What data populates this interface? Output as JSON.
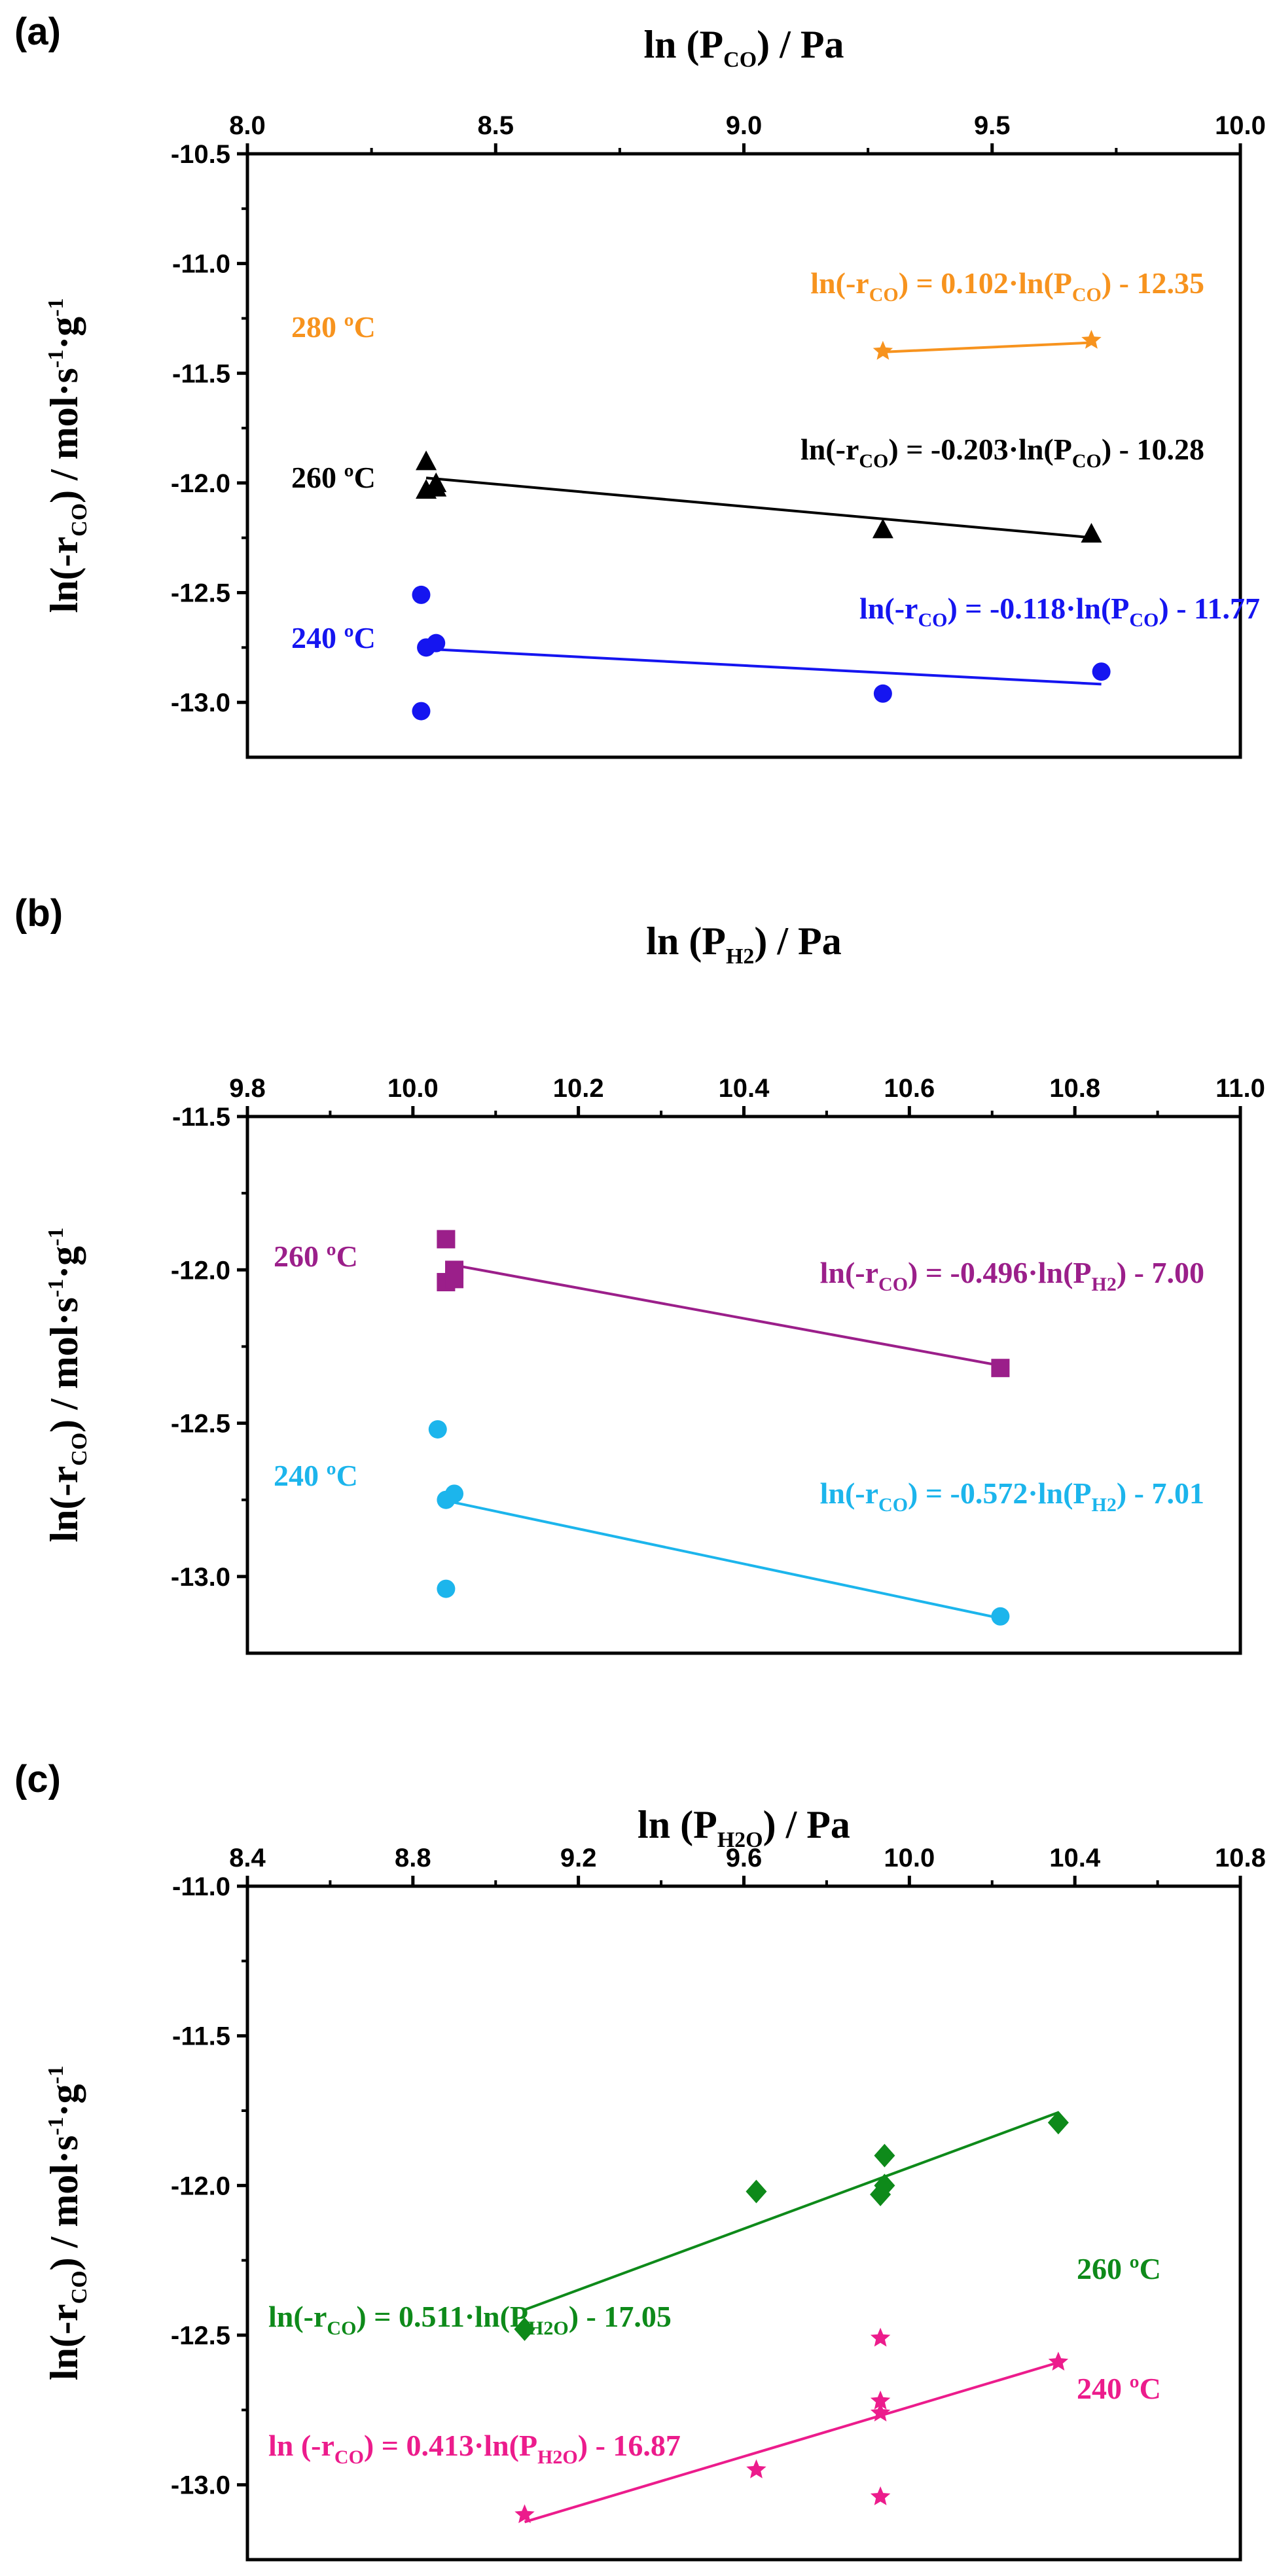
{
  "chart_data": [
    {
      "type": "scatter",
      "panel_label": "(a)",
      "title": "",
      "xlabel": {
        "main": "ln (P",
        "sub": "CO",
        "end": ") / Pa"
      },
      "ylabel": {
        "main": "ln(-r",
        "sub": "CO",
        "end": ") / mol·s",
        "sup1": "-1",
        "mid": "·g",
        "sup2": "-1"
      },
      "xlim": [
        8.0,
        10.0
      ],
      "ylim": [
        -13.25,
        -10.5
      ],
      "xticks": [
        8.0,
        8.5,
        9.0,
        9.5,
        10.0
      ],
      "xtick_labels": [
        "8.0",
        "8.5",
        "9.0",
        "9.5",
        "10.0"
      ],
      "yticks": [
        -10.5,
        -11.0,
        -11.5,
        -12.0,
        -12.5,
        -13.0
      ],
      "ytick_labels": [
        "-10.5",
        "-11.0",
        "-11.5",
        "-12.0",
        "-12.5",
        "-13.0"
      ],
      "x_axis_position": "top",
      "series": [
        {
          "name": "280 ºC",
          "color": "#F7931E",
          "marker": "star",
          "points": [
            [
              9.28,
              -11.4
            ],
            [
              9.7,
              -11.35
            ]
          ],
          "fit": {
            "slope": 0.102,
            "intercept": -12.35,
            "x_range": [
              9.28,
              9.7
            ]
          },
          "label": "280 ºC",
          "equation": {
            "a": "ln(-r",
            "b": "CO",
            "c": ") = 0.102·ln(P",
            "d": "CO",
            "e": ") - 12.35"
          }
        },
        {
          "name": "260 ºC",
          "color": "#000000",
          "marker": "triangle",
          "points": [
            [
              8.36,
              -11.9
            ],
            [
              8.36,
              -12.03
            ],
            [
              8.38,
              -12.0
            ],
            [
              8.38,
              -12.02
            ],
            [
              9.28,
              -12.21
            ],
            [
              9.7,
              -12.23
            ]
          ],
          "fit": {
            "slope": -0.203,
            "intercept": -10.28,
            "x_range": [
              8.36,
              9.7
            ]
          },
          "label": "260 ºC",
          "equation": {
            "a": "ln(-r",
            "b": "CO",
            "c": ") = -0.203·ln(P",
            "d": "CO",
            "e": ") - 10.28"
          }
        },
        {
          "name": "240 ºC",
          "color": "#1515F0",
          "marker": "circle",
          "points": [
            [
              8.35,
              -12.51
            ],
            [
              8.36,
              -12.75
            ],
            [
              8.38,
              -12.73
            ],
            [
              8.35,
              -13.04
            ],
            [
              9.28,
              -12.96
            ],
            [
              9.72,
              -12.86
            ]
          ],
          "fit": {
            "slope": -0.118,
            "intercept": -11.77,
            "x_range": [
              8.36,
              9.72
            ]
          },
          "label": "240 ºC",
          "equation": {
            "a": "ln(-r",
            "b": "CO",
            "c": ") = -0.118·ln(P",
            "d": "CO",
            "e": ") - 11.77"
          }
        }
      ]
    },
    {
      "type": "scatter",
      "panel_label": "(b)",
      "title": "",
      "xlabel": {
        "main": "ln (P",
        "sub": "H2",
        "end": ") / Pa"
      },
      "ylabel": {
        "main": "ln(-r",
        "sub": "CO",
        "end": ") / mol·s",
        "sup1": "-1",
        "mid": "·g",
        "sup2": "-1"
      },
      "xlim": [
        9.8,
        11.0
      ],
      "ylim": [
        -13.25,
        -11.5
      ],
      "xticks": [
        9.8,
        10.0,
        10.2,
        10.4,
        10.6,
        10.8,
        11.0
      ],
      "xtick_labels": [
        "9.8",
        "10.0",
        "10.2",
        "10.4",
        "10.6",
        "10.8",
        "11.0"
      ],
      "yticks": [
        -11.5,
        -12.0,
        -12.5,
        -13.0
      ],
      "ytick_labels": [
        "-11.5",
        "-12.0",
        "-12.5",
        "-13.0"
      ],
      "x_axis_position": "top",
      "series": [
        {
          "name": "260 ºC",
          "color": "#9B1F8A",
          "marker": "square",
          "points": [
            [
              10.04,
              -11.9
            ],
            [
              10.04,
              -12.04
            ],
            [
              10.05,
              -12.0
            ],
            [
              10.05,
              -12.03
            ],
            [
              10.71,
              -12.32
            ]
          ],
          "fit": {
            "slope": -0.496,
            "intercept": -7.0,
            "x_range": [
              10.05,
              10.71
            ]
          },
          "label": "260 ºC",
          "equation": {
            "a": "ln(-r",
            "b": "CO",
            "c": ") = -0.496·ln(P",
            "d": "H2",
            "e": ") - 7.00"
          }
        },
        {
          "name": "240 ºC",
          "color": "#1CB5EC",
          "marker": "circle",
          "points": [
            [
              10.03,
              -12.52
            ],
            [
              10.04,
              -12.75
            ],
            [
              10.05,
              -12.73
            ],
            [
              10.04,
              -13.04
            ],
            [
              10.71,
              -13.13
            ]
          ],
          "fit": {
            "slope": -0.572,
            "intercept": -7.01,
            "x_range": [
              10.04,
              10.71
            ]
          },
          "label": "240 ºC",
          "equation": {
            "a": "ln(-r",
            "b": "CO",
            "c": ") = -0.572·ln(P",
            "d": "H2",
            "e": ") - 7.01"
          }
        }
      ]
    },
    {
      "type": "scatter",
      "panel_label": "(c)",
      "title": "",
      "xlabel": {
        "main": "ln (P",
        "sub": "H2O",
        "end": ") / Pa"
      },
      "ylabel": {
        "main": "ln(-r",
        "sub": "CO",
        "end": ") / mol·s",
        "sup1": "-1",
        "mid": "·g",
        "sup2": "-1"
      },
      "xlim": [
        8.4,
        10.8
      ],
      "ylim": [
        -13.25,
        -11.0
      ],
      "xticks": [
        8.4,
        8.8,
        9.2,
        9.6,
        10.0,
        10.4,
        10.8
      ],
      "xtick_labels": [
        "8.4",
        "8.8",
        "9.2",
        "9.6",
        "10.0",
        "10.4",
        "10.8"
      ],
      "yticks": [
        -11.0,
        -11.5,
        -12.0,
        -12.5,
        -13.0
      ],
      "ytick_labels": [
        "-11.0",
        "-11.5",
        "-12.0",
        "-12.5",
        "-13.0"
      ],
      "x_axis_position": "top",
      "series": [
        {
          "name": "260 ºC",
          "color": "#0E8A1A",
          "marker": "diamond",
          "points": [
            [
              9.07,
              -12.48
            ],
            [
              9.63,
              -12.02
            ],
            [
              9.93,
              -12.03
            ],
            [
              9.94,
              -11.9
            ],
            [
              9.94,
              -12.0
            ],
            [
              10.36,
              -11.79
            ]
          ],
          "fit": {
            "slope": 0.511,
            "intercept": -17.05,
            "x_range": [
              9.07,
              10.36
            ]
          },
          "label": "260 ºC",
          "equation": {
            "a": "ln(-r",
            "b": "CO",
            "c": ") = 0.511·ln(P",
            "d": "H2O",
            "e": ") - 17.05"
          }
        },
        {
          "name": "240 ºC",
          "color": "#EC1C8C",
          "marker": "star",
          "points": [
            [
              9.07,
              -13.1
            ],
            [
              9.63,
              -12.95
            ],
            [
              9.93,
              -12.51
            ],
            [
              9.93,
              -12.72
            ],
            [
              9.93,
              -12.76
            ],
            [
              9.93,
              -13.04
            ],
            [
              10.36,
              -12.59
            ]
          ],
          "fit": {
            "slope": 0.413,
            "intercept": -16.87,
            "x_range": [
              9.07,
              10.36
            ]
          },
          "label": "240 ºC",
          "equation": {
            "a": "ln (-r",
            "b": "CO",
            "c": ") = 0.413·ln(P",
            "d": "H2O",
            "e": ") - 16.87"
          }
        }
      ]
    }
  ]
}
